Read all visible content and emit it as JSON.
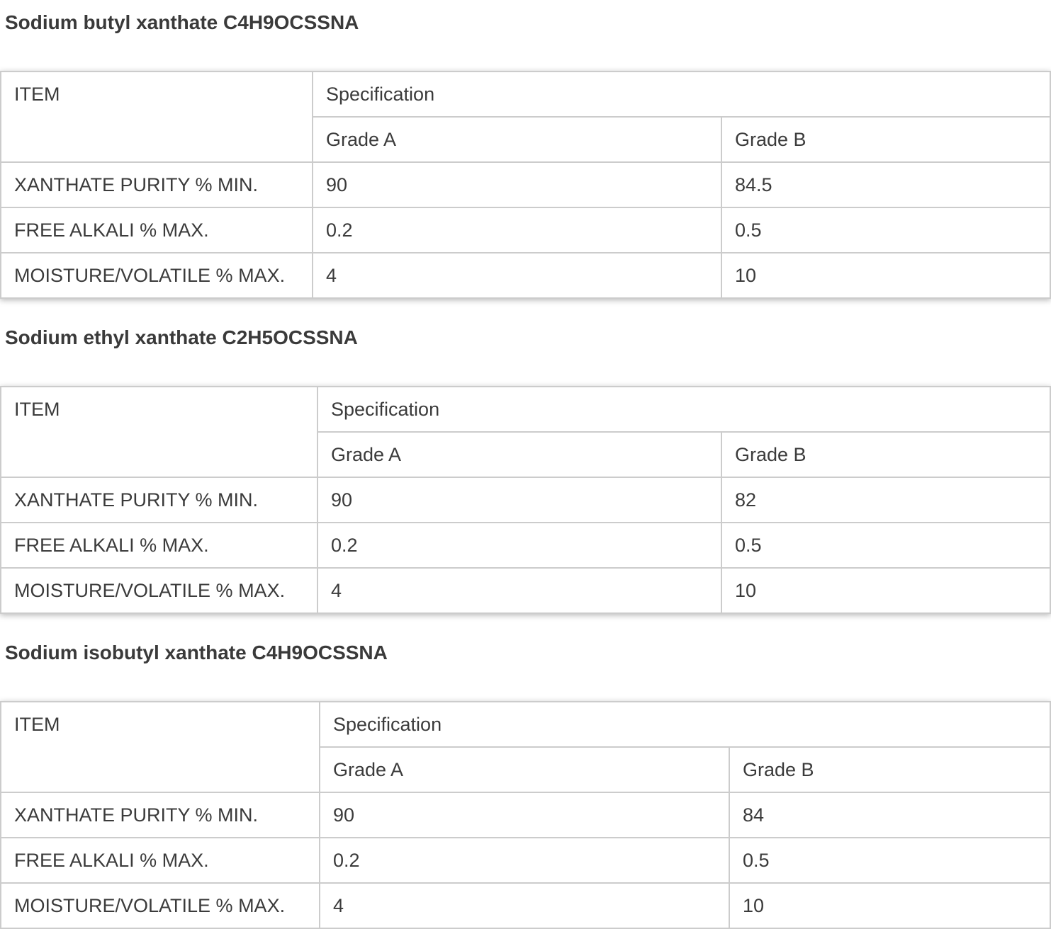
{
  "page": {
    "background_color": "#ffffff",
    "text_color": "#3b3b3b",
    "heading_color": "#3a3a3a",
    "table_border_color": "#cccccc"
  },
  "sections": [
    {
      "heading": "Sodium butyl xanthate C4H9OCSSNA",
      "table": {
        "item_header": "ITEM",
        "spec_header": "Specification",
        "grade_headers": [
          "Grade A",
          "Grade B"
        ],
        "rows": [
          {
            "item": "XANTHATE PURITY % MIN.",
            "grade_a": "90",
            "grade_b": "84.5"
          },
          {
            "item": "FREE ALKALI % MAX.",
            "grade_a": "0.2",
            "grade_b": "0.5"
          },
          {
            "item": "MOISTURE/VOLATILE % MAX.",
            "grade_a": "4",
            "grade_b": "10"
          }
        ]
      }
    },
    {
      "heading": "Sodium ethyl xanthate C2H5OCSSNA",
      "table": {
        "item_header": "ITEM",
        "spec_header": "Specification",
        "grade_headers": [
          "Grade A",
          "Grade B"
        ],
        "rows": [
          {
            "item": "XANTHATE PURITY % MIN.",
            "grade_a": "90",
            "grade_b": "82"
          },
          {
            "item": "FREE ALKALI % MAX.",
            "grade_a": "0.2",
            "grade_b": "0.5"
          },
          {
            "item": "MOISTURE/VOLATILE % MAX.",
            "grade_a": "4",
            "grade_b": "10"
          }
        ]
      }
    },
    {
      "heading": "Sodium isobutyl xanthate C4H9OCSSNA",
      "table": {
        "item_header": "ITEM",
        "spec_header": "Specification",
        "grade_headers": [
          "Grade A",
          "Grade B"
        ],
        "rows": [
          {
            "item": "XANTHATE PURITY % MIN.",
            "grade_a": "90",
            "grade_b": "84"
          },
          {
            "item": "FREE ALKALI % MAX.",
            "grade_a": "0.2",
            "grade_b": "0.5"
          },
          {
            "item": "MOISTURE/VOLATILE % MAX.",
            "grade_a": "4",
            "grade_b": "10"
          }
        ]
      }
    }
  ]
}
